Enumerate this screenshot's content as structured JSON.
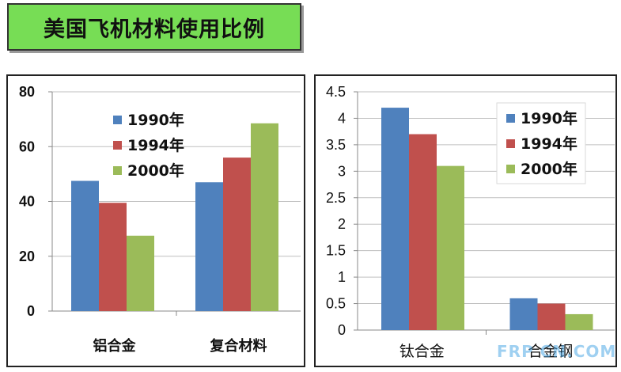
{
  "page_title": "美国飞机材料使用比例",
  "watermark": "FRP CN.COM",
  "colors": {
    "series": [
      "#4f81bd",
      "#c0504d",
      "#9bbb59"
    ],
    "title_bg": "#77dd55"
  },
  "chart_data": [
    {
      "type": "bar",
      "categories": [
        "铝合金",
        "复合材料"
      ],
      "series": [
        {
          "name": "1990年",
          "values": [
            47.5,
            47
          ]
        },
        {
          "name": "1994年",
          "values": [
            39.5,
            56
          ]
        },
        {
          "name": "2000年",
          "values": [
            27.5,
            68.5
          ]
        }
      ],
      "ylim": [
        0,
        80
      ],
      "yticks": [
        "80",
        "60",
        "40",
        "20",
        "0"
      ],
      "grid": true,
      "legend_position": "top-left"
    },
    {
      "type": "bar",
      "categories": [
        "钛合金",
        "合金钢"
      ],
      "series": [
        {
          "name": "1990年",
          "values": [
            4.2,
            0.6
          ]
        },
        {
          "name": "1994年",
          "values": [
            3.7,
            0.5
          ]
        },
        {
          "name": "2000年",
          "values": [
            3.1,
            0.3
          ]
        }
      ],
      "ylim": [
        0,
        4.5
      ],
      "yticks": [
        "4.5",
        "4",
        "3.5",
        "3",
        "2.5",
        "2",
        "1.5",
        "1",
        "0.5",
        "0"
      ],
      "grid": true,
      "legend_position": "top-right"
    }
  ]
}
